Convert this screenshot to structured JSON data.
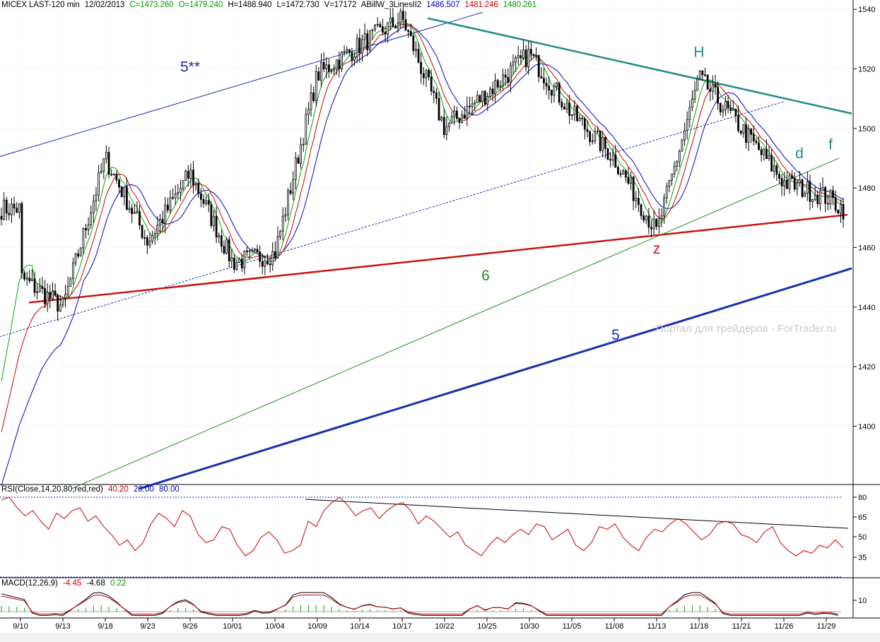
{
  "header": {
    "symbol": "MICEX LAST-120 min",
    "date": "12/02/2013",
    "close": "C=1473.260",
    "open": "O=1479.240",
    "high": "H=1488.940",
    "low": "L=1472.730",
    "volume": "V=17172",
    "indicator": "ABillW_3LinesII2",
    "ma_blue": "1486.507",
    "ma_red": "1481.246",
    "ma_green": "1480.261"
  },
  "rsi_header": {
    "name": "RSI(Close,14,20,80,red,red)",
    "value": "40.20",
    "low_level": "20.00",
    "high_level": "80.00"
  },
  "macd_header": {
    "name": "MACD(12,26,9)",
    "v1": "-4.45",
    "v2": "-4.68",
    "v3": "0.22"
  },
  "watermark": "Портал для трейдеров - ForTrader.ru",
  "colors": {
    "rsi": "#cc0000",
    "ma_blue": "#0000cc",
    "ma_red": "#cc0000",
    "ma_green": "#00aa00",
    "resistance": "#1f8a8a",
    "support_red": "#cc1111",
    "channel_blue": "#1a2fb0",
    "wave6": "#1f8c1f"
  },
  "chart_data": {
    "type": "candlestick",
    "price_axis": {
      "ticks": [
        1400,
        1420,
        1440,
        1460,
        1480,
        1500,
        1520,
        1540
      ],
      "range": [
        1375,
        1542
      ]
    },
    "x_axis": {
      "ticks": [
        "9/10",
        "9/13",
        "9/18",
        "9/23",
        "9/26",
        "10/01",
        "10/04",
        "10/09",
        "10/14",
        "10/17",
        "10/22",
        "10/25",
        "10/30",
        "11/05",
        "11/08",
        "11/13",
        "11/18",
        "11/21",
        "11/26",
        "11/29"
      ]
    },
    "price_key_points": [
      {
        "date": "9/10",
        "price": 1450
      },
      {
        "date": "9/13",
        "price": 1440
      },
      {
        "date": "9/18",
        "price": 1490
      },
      {
        "date": "9/23",
        "price": 1462
      },
      {
        "date": "9/26",
        "price": 1485
      },
      {
        "date": "10/01",
        "price": 1455
      },
      {
        "date": "10/04",
        "price": 1458
      },
      {
        "date": "10/09",
        "price": 1518
      },
      {
        "date": "10/14",
        "price": 1528
      },
      {
        "date": "10/17",
        "price": 1537
      },
      {
        "date": "10/22",
        "price": 1500
      },
      {
        "date": "10/25",
        "price": 1512
      },
      {
        "date": "10/30",
        "price": 1525
      },
      {
        "date": "11/05",
        "price": 1505
      },
      {
        "date": "11/08",
        "price": 1490
      },
      {
        "date": "11/13",
        "price": 1465
      },
      {
        "date": "11/18",
        "price": 1517
      },
      {
        "date": "11/21",
        "price": 1500
      },
      {
        "date": "11/26",
        "price": 1482
      },
      {
        "date": "11/29",
        "price": 1477
      },
      {
        "date": "12/02",
        "price": 1473
      }
    ],
    "wave_labels": [
      {
        "text": "5**",
        "date": "9/26",
        "price": 1519
      },
      {
        "text": "H",
        "date": "11/18",
        "price": 1524
      },
      {
        "text": "z",
        "date": "11/13",
        "price": 1458
      },
      {
        "text": "d",
        "date": "11/29",
        "price": 1490
      },
      {
        "text": "f",
        "date": "11/29",
        "price": 1493
      },
      {
        "text": "6",
        "date": "10/25",
        "price": 1449
      },
      {
        "text": "5",
        "date": "11/08",
        "price": 1429
      }
    ],
    "rsi": {
      "ticks": [
        35,
        50,
        65,
        80
      ],
      "levels": [
        20,
        80
      ],
      "values": [
        78,
        80,
        72,
        66,
        70,
        62,
        56,
        68,
        64,
        70,
        72,
        62,
        66,
        58,
        52,
        44,
        48,
        40,
        46,
        60,
        68,
        64,
        58,
        70,
        66,
        52,
        46,
        48,
        58,
        56,
        44,
        36,
        40,
        50,
        54,
        48,
        38,
        40,
        44,
        62,
        58,
        70,
        76,
        80,
        74,
        66,
        70,
        72,
        64,
        70,
        74,
        76,
        70,
        60,
        66,
        62,
        56,
        50,
        54,
        44,
        40,
        36,
        44,
        50,
        46,
        52,
        56,
        52,
        60,
        58,
        48,
        52,
        56,
        44,
        40,
        46,
        58,
        56,
        60,
        50,
        44,
        40,
        50,
        56,
        54,
        60,
        64,
        60,
        54,
        48,
        52,
        60,
        62,
        60,
        52,
        50,
        46,
        54,
        58,
        46,
        40,
        36,
        40,
        38,
        44,
        42,
        48,
        42
      ]
    },
    "macd": {
      "ticks": [
        10
      ]
    }
  }
}
